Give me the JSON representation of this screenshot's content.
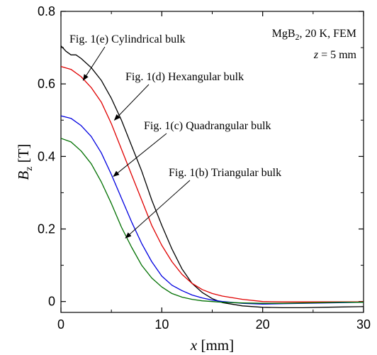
{
  "chart_data": {
    "type": "line",
    "title": "",
    "xlabel": {
      "italic": "x",
      "rest": " [mm]"
    },
    "ylabel": {
      "italic": "B",
      "sub": "z",
      "rest": " [T]"
    },
    "xlim": [
      0,
      30
    ],
    "ylim": [
      -0.03,
      0.8
    ],
    "x_ticks": [
      0,
      10,
      20,
      30
    ],
    "y_ticks": [
      0,
      0.2,
      0.4,
      0.6,
      0.8
    ],
    "x_tick_labels": [
      "0",
      "10",
      "20",
      "30"
    ],
    "y_tick_labels": [
      "0",
      "0.2",
      "0.4",
      "0.6",
      "0.8"
    ],
    "grid": false,
    "info_box": {
      "line1_pre": "MgB",
      "line1_sub": "2",
      "line1_post": ", 20 K, FEM",
      "line2_italic": "z",
      "line2_rest": " = 5 mm"
    },
    "series": [
      {
        "name": "Fig. 1(e) Cylindrical bulk",
        "color": "#000000",
        "x": [
          0,
          0.5,
          1,
          1.5,
          2,
          3,
          4,
          5,
          6,
          7,
          8,
          9,
          10,
          11,
          12,
          13,
          14,
          15,
          16,
          18,
          20,
          22,
          24,
          26,
          28,
          30
        ],
        "y": [
          0.705,
          0.69,
          0.68,
          0.68,
          0.67,
          0.645,
          0.61,
          0.56,
          0.5,
          0.43,
          0.36,
          0.28,
          0.21,
          0.145,
          0.09,
          0.05,
          0.025,
          0.008,
          -0.003,
          -0.012,
          -0.016,
          -0.017,
          -0.017,
          -0.016,
          -0.015,
          -0.014
        ]
      },
      {
        "name": "Fig. 1(d) Hexangular bulk",
        "color": "#e00000",
        "x": [
          0,
          1,
          2,
          3,
          4,
          5,
          6,
          7,
          8,
          9,
          10,
          11,
          12,
          13,
          14,
          15,
          16,
          18,
          20,
          22,
          24,
          26,
          28,
          30
        ],
        "y": [
          0.648,
          0.64,
          0.62,
          0.59,
          0.55,
          0.49,
          0.42,
          0.35,
          0.28,
          0.21,
          0.155,
          0.11,
          0.075,
          0.05,
          0.033,
          0.022,
          0.015,
          0.006,
          0.0,
          -0.001,
          -0.001,
          -0.001,
          -0.001,
          -0.001
        ]
      },
      {
        "name": "Fig. 1(c) Quadrangular bulk",
        "color": "#0000e0",
        "x": [
          0,
          1,
          2,
          3,
          4,
          5,
          6,
          7,
          8,
          9,
          10,
          11,
          12,
          13,
          14,
          15,
          16,
          18,
          20,
          22,
          24,
          26,
          28,
          30
        ],
        "y": [
          0.512,
          0.505,
          0.485,
          0.455,
          0.41,
          0.35,
          0.285,
          0.22,
          0.16,
          0.11,
          0.07,
          0.045,
          0.03,
          0.018,
          0.01,
          0.004,
          0.0,
          -0.005,
          -0.007,
          -0.006,
          -0.005,
          -0.004,
          -0.003,
          -0.002
        ]
      },
      {
        "name": "Fig. 1(b) Triangular bulk",
        "color": "#007000",
        "x": [
          0,
          1,
          2,
          3,
          4,
          5,
          6,
          7,
          8,
          9,
          10,
          11,
          12,
          13,
          14,
          15,
          16,
          18,
          20,
          22,
          24,
          26,
          28,
          30
        ],
        "y": [
          0.45,
          0.44,
          0.415,
          0.38,
          0.33,
          0.27,
          0.205,
          0.15,
          0.1,
          0.065,
          0.04,
          0.022,
          0.012,
          0.006,
          0.002,
          0.0,
          -0.002,
          -0.004,
          -0.005,
          -0.005,
          -0.004,
          -0.003,
          -0.002,
          -0.002
        ]
      }
    ],
    "annotations": [
      {
        "series": 0,
        "text": "Fig. 1(e) Cylindrical bulk",
        "target_x": 2.2,
        "target_y": 0.61
      },
      {
        "series": 1,
        "text": "Fig. 1(d) Hexangular bulk",
        "target_x": 5.3,
        "target_y": 0.5
      },
      {
        "series": 2,
        "text": "Fig. 1(c) Quadrangular bulk",
        "target_x": 5.2,
        "target_y": 0.345
      },
      {
        "series": 3,
        "text": "Fig. 1(b) Triangular bulk",
        "target_x": 6.4,
        "target_y": 0.175
      }
    ]
  }
}
